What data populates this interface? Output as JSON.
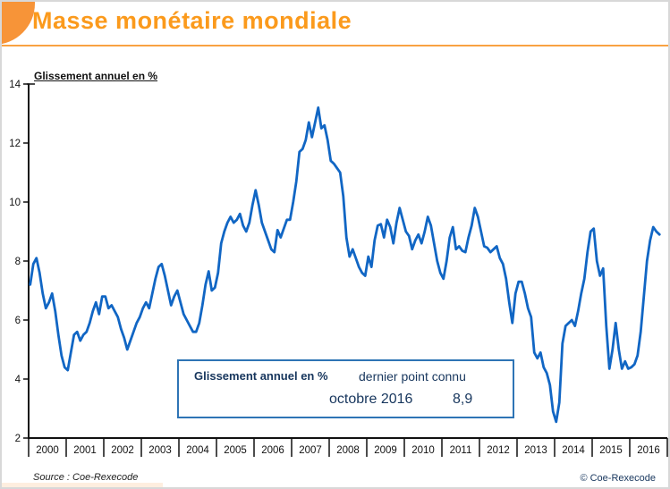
{
  "header": {
    "title": "Masse monétaire mondiale"
  },
  "chart_data": {
    "type": "line",
    "title": "Masse monétaire mondiale",
    "ylabel": "Glissement annuel en %",
    "xlabel": "",
    "unit": "%",
    "ylim": [
      2,
      14
    ],
    "y_ticks": [
      2,
      4,
      6,
      8,
      10,
      12,
      14
    ],
    "x_labels": [
      "2000",
      "2001",
      "2002",
      "2003",
      "2004",
      "2005",
      "2006",
      "2007",
      "2008",
      "2009",
      "2010",
      "2011",
      "2012",
      "2013",
      "2014",
      "2015",
      "2016"
    ],
    "grid": false,
    "legend_position": "floating-box",
    "series": [
      {
        "name": "Glissement annuel en %",
        "color": "#1166C4",
        "frequency": "monthly",
        "start": "janvier 2000",
        "end": "octobre 2016",
        "values": [
          7.2,
          7.9,
          8.1,
          7.6,
          6.9,
          6.4,
          6.6,
          6.9,
          6.3,
          5.5,
          4.8,
          4.4,
          4.3,
          4.9,
          5.5,
          5.6,
          5.3,
          5.5,
          5.6,
          5.9,
          6.3,
          6.6,
          6.2,
          6.8,
          6.8,
          6.4,
          6.5,
          6.3,
          6.1,
          5.7,
          5.4,
          5.0,
          5.3,
          5.6,
          5.9,
          6.1,
          6.4,
          6.6,
          6.4,
          6.9,
          7.4,
          7.8,
          7.9,
          7.5,
          7.0,
          6.5,
          6.8,
          7.0,
          6.6,
          6.2,
          6.0,
          5.8,
          5.6,
          5.6,
          5.9,
          6.5,
          7.2,
          7.65,
          7.0,
          7.1,
          7.6,
          8.6,
          9.0,
          9.3,
          9.5,
          9.3,
          9.4,
          9.6,
          9.2,
          9.0,
          9.3,
          9.9,
          10.4,
          9.9,
          9.3,
          9.0,
          8.7,
          8.4,
          8.3,
          9.05,
          8.8,
          9.1,
          9.4,
          9.4,
          10.0,
          10.7,
          11.7,
          11.8,
          12.1,
          12.7,
          12.2,
          12.7,
          13.2,
          12.5,
          12.6,
          12.1,
          11.4,
          11.3,
          11.15,
          11.0,
          10.2,
          8.8,
          8.15,
          8.4,
          8.1,
          7.8,
          7.6,
          7.5,
          8.15,
          7.8,
          8.7,
          9.2,
          9.25,
          8.8,
          9.4,
          9.15,
          8.6,
          9.3,
          9.8,
          9.4,
          9.0,
          8.85,
          8.4,
          8.7,
          8.9,
          8.6,
          9.0,
          9.5,
          9.2,
          8.6,
          8.0,
          7.6,
          7.4,
          8.0,
          8.8,
          9.15,
          8.4,
          8.5,
          8.35,
          8.3,
          8.8,
          9.2,
          9.8,
          9.5,
          9.0,
          8.5,
          8.45,
          8.3,
          8.4,
          8.5,
          8.1,
          7.9,
          7.4,
          6.6,
          5.9,
          6.9,
          7.3,
          7.3,
          6.9,
          6.4,
          6.1,
          4.9,
          4.7,
          4.9,
          4.4,
          4.2,
          3.8,
          2.9,
          2.55,
          3.2,
          5.2,
          5.8,
          5.9,
          6.0,
          5.8,
          6.3,
          6.9,
          7.4,
          8.3,
          9.0,
          9.1,
          8.0,
          7.5,
          7.75,
          5.8,
          4.35,
          5.0,
          5.9,
          5.0,
          4.35,
          4.6,
          4.35,
          4.4,
          4.5,
          4.8,
          5.6,
          6.8,
          8.0,
          8.7,
          9.15,
          9.0,
          8.9
        ]
      }
    ]
  },
  "legend_box": {
    "series_label": "Glissement annuel en %",
    "note": "dernier point connu",
    "last_point_date": "octobre 2016",
    "last_point_value": "8,9"
  },
  "footer": {
    "source": "Source : Coe-Rexecode",
    "copyright": "© Coe-Rexecode"
  },
  "colors": {
    "accent_orange": "#F79438",
    "title_orange": "#FB9A1C",
    "line_blue": "#1166C4",
    "legend_border": "#2E74B5",
    "legend_text": "#17365D",
    "axis_black": "#111111"
  }
}
